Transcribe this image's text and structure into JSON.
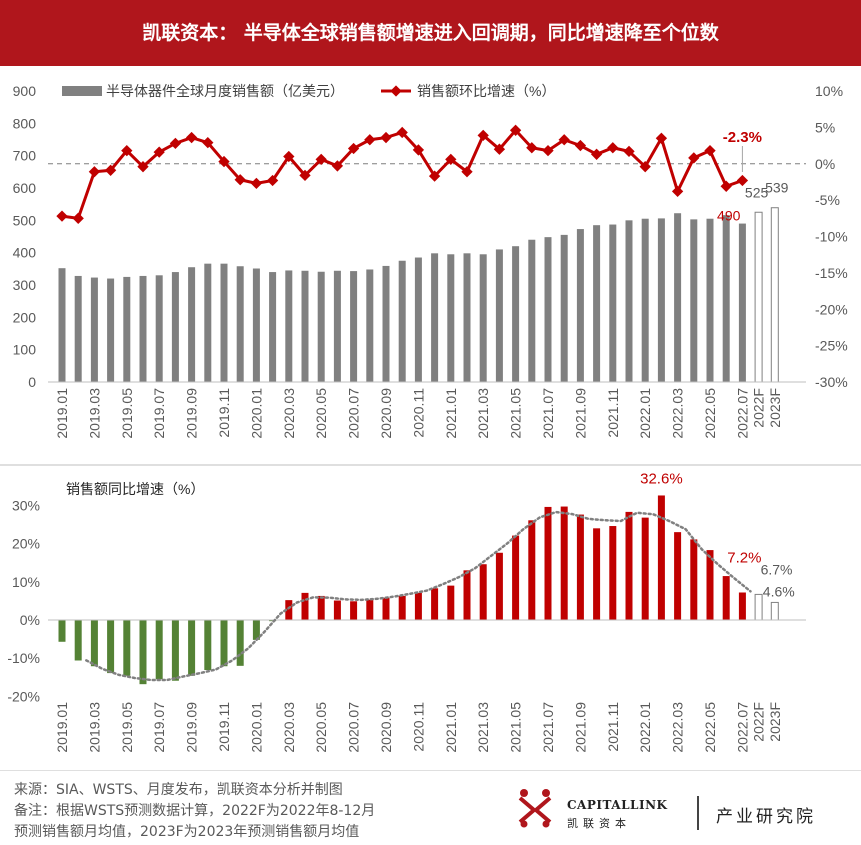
{
  "header": {
    "title": "凯联资本： 半导体全球销售额增速进入回调期，同比增速降至个位数"
  },
  "footer": {
    "source": "来源：SIA、WSTS、月度发布，凯联资本分析并制图",
    "note_line1": "备注：根据WSTS预测数据计算，2022F为2022年8-12月",
    "note_line2": "预测销售额月均值，2023F为2023年预测销售额月均值"
  },
  "brand": {
    "name_en": "CAPITALLINK",
    "name_cn": "凯联资本",
    "department": "产业研究院",
    "accent_color": "#b0161c"
  },
  "chart_data": [
    {
      "type": "bar",
      "title": "",
      "x_tick_labels": [
        "2019.01",
        "2019.03",
        "2019.05",
        "2019.07",
        "2019.09",
        "2019.11",
        "2020.01",
        "2020.03",
        "2020.05",
        "2020.07",
        "2020.09",
        "2020.11",
        "2021.01",
        "2021.03",
        "2021.05",
        "2021.07",
        "2021.09",
        "2021.11",
        "2022.01",
        "2022.03",
        "2022.05",
        "2022.07",
        "2022F",
        "2023F"
      ],
      "categories": [
        "2019.01",
        "2019.02",
        "2019.03",
        "2019.04",
        "2019.05",
        "2019.06",
        "2019.07",
        "2019.08",
        "2019.09",
        "2019.10",
        "2019.11",
        "2019.12",
        "2020.01",
        "2020.02",
        "2020.03",
        "2020.04",
        "2020.05",
        "2020.06",
        "2020.07",
        "2020.08",
        "2020.09",
        "2020.10",
        "2020.11",
        "2020.12",
        "2021.01",
        "2021.02",
        "2021.03",
        "2021.04",
        "2021.05",
        "2021.06",
        "2021.07",
        "2021.08",
        "2021.09",
        "2021.10",
        "2021.11",
        "2021.12",
        "2022.01",
        "2022.02",
        "2022.03",
        "2022.04",
        "2022.05",
        "2022.06",
        "2022.07",
        "2022F",
        "2023F"
      ],
      "series": [
        {
          "name": "半导体器件全球月度销售额（亿美元）",
          "type": "bar",
          "axis": "left",
          "color": "#808080",
          "values": [
            352,
            328,
            323,
            320,
            325,
            328,
            330,
            340,
            355,
            366,
            366,
            358,
            351,
            340,
            345,
            344,
            341,
            344,
            343,
            348,
            359,
            375,
            385,
            398,
            395,
            398,
            395,
            410,
            420,
            440,
            448,
            455,
            473,
            485,
            487,
            500,
            505,
            506,
            522,
            503,
            505,
            516,
            490,
            525,
            539
          ]
        },
        {
          "name": "销售额环比增速（%）",
          "type": "line",
          "axis": "right",
          "color": "#c00000",
          "values": [
            -7.2,
            -7.5,
            -1.1,
            -0.9,
            1.8,
            -0.4,
            1.6,
            2.8,
            3.6,
            2.9,
            0.3,
            -2.2,
            -2.7,
            -2.3,
            1.0,
            -1.6,
            0.6,
            -0.3,
            2.1,
            3.3,
            3.6,
            4.3,
            1.9,
            -1.7,
            0.6,
            -1.1,
            3.9,
            2.0,
            4.6,
            2.2,
            1.8,
            3.3,
            2.5,
            1.3,
            2.2,
            1.7,
            -0.4,
            3.5,
            -3.8,
            0.8,
            1.8,
            -3.1,
            -2.3,
            null,
            null
          ]
        }
      ],
      "data_labels": {
        "bar_490": "490",
        "bar_525": "525",
        "bar_539": "539",
        "line_last": "-2.3%"
      },
      "ylim_left": [
        0,
        900
      ],
      "ylim_right": [
        -30,
        10
      ],
      "yticks_left": [
        "0",
        "100",
        "200",
        "300",
        "400",
        "500",
        "600",
        "700",
        "800",
        "900"
      ],
      "yticks_right": [
        "-30%",
        "-25%",
        "-20%",
        "-15%",
        "-10%",
        "-5%",
        "0%",
        "5%",
        "10%"
      ],
      "reference_line": "dashed at 0% (right axis)",
      "legend": "top"
    },
    {
      "type": "bar",
      "title": "销售额同比增速（%）",
      "x_tick_labels": [
        "2019.01",
        "2019.03",
        "2019.05",
        "2019.07",
        "2019.09",
        "2019.11",
        "2020.01",
        "2020.03",
        "2020.05",
        "2020.07",
        "2020.09",
        "2020.11",
        "2021.01",
        "2021.03",
        "2021.05",
        "2021.07",
        "2021.09",
        "2021.11",
        "2022.01",
        "2022.03",
        "2022.05",
        "2022.07",
        "2022F",
        "2023F"
      ],
      "series": [
        {
          "name": "销售额同比增速（%）",
          "positive_color": "#c00000",
          "negative_color": "#548235",
          "values": [
            -5.7,
            -10.6,
            -12.1,
            -13.9,
            -14.6,
            -16.8,
            -15.5,
            -15.9,
            -14.6,
            -13.1,
            -12.1,
            -12.0,
            -5.2,
            -0.3,
            5.2,
            7.1,
            6.3,
            5.1,
            4.9,
            5.3,
            5.8,
            6.3,
            7.1,
            8.3,
            9.0,
            13.0,
            14.6,
            17.6,
            22.1,
            26.1,
            29.6,
            29.7,
            27.6,
            24.0,
            24.6,
            28.3,
            26.8,
            32.6,
            23.0,
            21.1,
            18.3,
            11.5,
            7.2,
            6.7,
            4.6
          ]
        }
      ],
      "trendline": "dotted gray moving average",
      "data_labels": {
        "peak": "32.6%",
        "last_month": "7.2%",
        "f2022": "6.7%",
        "f2023": "4.6%"
      },
      "ylim": [
        -20,
        35
      ],
      "yticks": [
        "-20%",
        "-10%",
        "0%",
        "10%",
        "20%",
        "30%"
      ],
      "forecast_categories": [
        "2022F",
        "2023F"
      ]
    }
  ]
}
